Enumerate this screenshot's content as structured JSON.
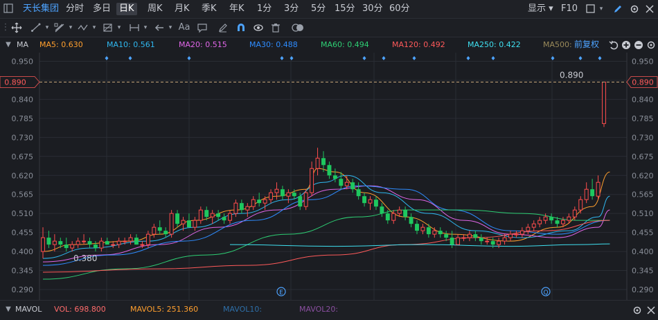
{
  "topbar": {
    "stock_name": "天长集团",
    "periods": [
      "分时",
      "多日",
      "日K",
      "周K",
      "月K",
      "季K",
      "年K",
      "1分",
      "3分",
      "5分",
      "15分",
      "30分",
      "60分"
    ],
    "active_period": "日K",
    "display_label": "显示",
    "f10_label": "F10"
  },
  "toolbar": {
    "text_tool_label": "Aa"
  },
  "ma_bar": {
    "label": "MA",
    "items": [
      {
        "text": "MA5: 0.630",
        "color": "#ff9f2e"
      },
      {
        "text": "MA10: 0.561",
        "color": "#2fb8f0"
      },
      {
        "text": "MA20: 0.515",
        "color": "#e066e8"
      },
      {
        "text": "MA30: 0.488",
        "color": "#2e8cff"
      },
      {
        "text": "MA60: 0.494",
        "color": "#2ecf74"
      },
      {
        "text": "MA120: 0.492",
        "color": "#ff5a5a"
      },
      {
        "text": "MA250: 0.422",
        "color": "#3fe0f0"
      },
      {
        "text": "MA500:",
        "color": "#9a8a5a"
      }
    ],
    "adjust_label": "前复权"
  },
  "vol_bar": {
    "label": "MAVOL",
    "items": [
      {
        "text": "VOL: 698.800",
        "color": "#ff6b6b"
      },
      {
        "text": "MAVOL5: 251.360",
        "color": "#ff9f2e"
      },
      {
        "text": "MAVOL10:",
        "color": "#2e6fa8"
      },
      {
        "text": "MAVOL20:",
        "color": "#8a4fa0"
      }
    ]
  },
  "chart_data": {
    "type": "candlestick",
    "ylim": [
      0.26,
      0.975
    ],
    "yticks": [
      "0.950",
      "0.895",
      "0.840",
      "0.785",
      "0.730",
      "0.675",
      "0.620",
      "0.565",
      "0.510",
      "0.455",
      "0.400",
      "0.345",
      "0.290"
    ],
    "current_price": "0.890",
    "current_value": 0.89,
    "high_label": "0.890",
    "low_label": "0.380",
    "low_value": 0.38,
    "event_markers": [
      "E",
      "Q"
    ],
    "grid": true,
    "colors": {
      "up": "#ff4d4d",
      "down": "#1ec85f",
      "grid": "#2a2d34",
      "axis": "#8a8f99",
      "price_line": "#c8a77a"
    },
    "candles": [
      {
        "o": 0.4,
        "h": 0.47,
        "l": 0.38,
        "c": 0.44
      },
      {
        "o": 0.44,
        "h": 0.46,
        "l": 0.41,
        "c": 0.42
      },
      {
        "o": 0.42,
        "h": 0.45,
        "l": 0.4,
        "c": 0.43
      },
      {
        "o": 0.43,
        "h": 0.44,
        "l": 0.41,
        "c": 0.42
      },
      {
        "o": 0.42,
        "h": 0.44,
        "l": 0.4,
        "c": 0.41
      },
      {
        "o": 0.41,
        "h": 0.43,
        "l": 0.4,
        "c": 0.42
      },
      {
        "o": 0.42,
        "h": 0.44,
        "l": 0.41,
        "c": 0.43
      },
      {
        "o": 0.43,
        "h": 0.45,
        "l": 0.42,
        "c": 0.43
      },
      {
        "o": 0.43,
        "h": 0.44,
        "l": 0.41,
        "c": 0.42
      },
      {
        "o": 0.42,
        "h": 0.43,
        "l": 0.4,
        "c": 0.41
      },
      {
        "o": 0.41,
        "h": 0.44,
        "l": 0.4,
        "c": 0.43
      },
      {
        "o": 0.43,
        "h": 0.44,
        "l": 0.42,
        "c": 0.42
      },
      {
        "o": 0.42,
        "h": 0.43,
        "l": 0.41,
        "c": 0.42
      },
      {
        "o": 0.42,
        "h": 0.44,
        "l": 0.41,
        "c": 0.43
      },
      {
        "o": 0.43,
        "h": 0.44,
        "l": 0.42,
        "c": 0.43
      },
      {
        "o": 0.43,
        "h": 0.45,
        "l": 0.42,
        "c": 0.44
      },
      {
        "o": 0.44,
        "h": 0.45,
        "l": 0.42,
        "c": 0.42
      },
      {
        "o": 0.42,
        "h": 0.43,
        "l": 0.41,
        "c": 0.42
      },
      {
        "o": 0.42,
        "h": 0.46,
        "l": 0.41,
        "c": 0.45
      },
      {
        "o": 0.45,
        "h": 0.48,
        "l": 0.44,
        "c": 0.47
      },
      {
        "o": 0.47,
        "h": 0.49,
        "l": 0.45,
        "c": 0.46
      },
      {
        "o": 0.46,
        "h": 0.47,
        "l": 0.44,
        "c": 0.45
      },
      {
        "o": 0.45,
        "h": 0.52,
        "l": 0.44,
        "c": 0.51
      },
      {
        "o": 0.51,
        "h": 0.52,
        "l": 0.47,
        "c": 0.48
      },
      {
        "o": 0.48,
        "h": 0.5,
        "l": 0.46,
        "c": 0.49
      },
      {
        "o": 0.49,
        "h": 0.51,
        "l": 0.47,
        "c": 0.47
      },
      {
        "o": 0.47,
        "h": 0.5,
        "l": 0.46,
        "c": 0.49
      },
      {
        "o": 0.49,
        "h": 0.53,
        "l": 0.48,
        "c": 0.52
      },
      {
        "o": 0.52,
        "h": 0.53,
        "l": 0.49,
        "c": 0.5
      },
      {
        "o": 0.5,
        "h": 0.52,
        "l": 0.48,
        "c": 0.51
      },
      {
        "o": 0.51,
        "h": 0.52,
        "l": 0.49,
        "c": 0.5
      },
      {
        "o": 0.5,
        "h": 0.51,
        "l": 0.48,
        "c": 0.49
      },
      {
        "o": 0.49,
        "h": 0.52,
        "l": 0.48,
        "c": 0.51
      },
      {
        "o": 0.51,
        "h": 0.55,
        "l": 0.5,
        "c": 0.54
      },
      {
        "o": 0.54,
        "h": 0.55,
        "l": 0.51,
        "c": 0.52
      },
      {
        "o": 0.52,
        "h": 0.54,
        "l": 0.5,
        "c": 0.53
      },
      {
        "o": 0.53,
        "h": 0.56,
        "l": 0.52,
        "c": 0.55
      },
      {
        "o": 0.55,
        "h": 0.57,
        "l": 0.53,
        "c": 0.54
      },
      {
        "o": 0.54,
        "h": 0.56,
        "l": 0.52,
        "c": 0.55
      },
      {
        "o": 0.55,
        "h": 0.58,
        "l": 0.54,
        "c": 0.57
      },
      {
        "o": 0.57,
        "h": 0.6,
        "l": 0.55,
        "c": 0.58
      },
      {
        "o": 0.58,
        "h": 0.59,
        "l": 0.55,
        "c": 0.56
      },
      {
        "o": 0.56,
        "h": 0.58,
        "l": 0.54,
        "c": 0.57
      },
      {
        "o": 0.57,
        "h": 0.58,
        "l": 0.55,
        "c": 0.56
      },
      {
        "o": 0.56,
        "h": 0.57,
        "l": 0.52,
        "c": 0.53
      },
      {
        "o": 0.53,
        "h": 0.58,
        "l": 0.52,
        "c": 0.57
      },
      {
        "o": 0.57,
        "h": 0.66,
        "l": 0.56,
        "c": 0.64
      },
      {
        "o": 0.64,
        "h": 0.7,
        "l": 0.62,
        "c": 0.67
      },
      {
        "o": 0.67,
        "h": 0.69,
        "l": 0.63,
        "c": 0.65
      },
      {
        "o": 0.65,
        "h": 0.66,
        "l": 0.61,
        "c": 0.62
      },
      {
        "o": 0.62,
        "h": 0.64,
        "l": 0.6,
        "c": 0.61
      },
      {
        "o": 0.61,
        "h": 0.63,
        "l": 0.58,
        "c": 0.59
      },
      {
        "o": 0.59,
        "h": 0.62,
        "l": 0.58,
        "c": 0.6
      },
      {
        "o": 0.6,
        "h": 0.61,
        "l": 0.57,
        "c": 0.58
      },
      {
        "o": 0.58,
        "h": 0.6,
        "l": 0.55,
        "c": 0.56
      },
      {
        "o": 0.56,
        "h": 0.57,
        "l": 0.53,
        "c": 0.54
      },
      {
        "o": 0.54,
        "h": 0.56,
        "l": 0.52,
        "c": 0.55
      },
      {
        "o": 0.55,
        "h": 0.56,
        "l": 0.52,
        "c": 0.53
      },
      {
        "o": 0.53,
        "h": 0.54,
        "l": 0.5,
        "c": 0.51
      },
      {
        "o": 0.51,
        "h": 0.52,
        "l": 0.48,
        "c": 0.49
      },
      {
        "o": 0.49,
        "h": 0.52,
        "l": 0.48,
        "c": 0.51
      },
      {
        "o": 0.51,
        "h": 0.53,
        "l": 0.5,
        "c": 0.52
      },
      {
        "o": 0.52,
        "h": 0.53,
        "l": 0.49,
        "c": 0.5
      },
      {
        "o": 0.5,
        "h": 0.51,
        "l": 0.47,
        "c": 0.48
      },
      {
        "o": 0.48,
        "h": 0.49,
        "l": 0.45,
        "c": 0.46
      },
      {
        "o": 0.46,
        "h": 0.48,
        "l": 0.45,
        "c": 0.47
      },
      {
        "o": 0.47,
        "h": 0.48,
        "l": 0.44,
        "c": 0.45
      },
      {
        "o": 0.45,
        "h": 0.47,
        "l": 0.44,
        "c": 0.46
      },
      {
        "o": 0.46,
        "h": 0.47,
        "l": 0.44,
        "c": 0.45
      },
      {
        "o": 0.45,
        "h": 0.46,
        "l": 0.43,
        "c": 0.44
      },
      {
        "o": 0.44,
        "h": 0.46,
        "l": 0.41,
        "c": 0.42
      },
      {
        "o": 0.42,
        "h": 0.45,
        "l": 0.42,
        "c": 0.44
      },
      {
        "o": 0.44,
        "h": 0.45,
        "l": 0.43,
        "c": 0.44
      },
      {
        "o": 0.44,
        "h": 0.46,
        "l": 0.43,
        "c": 0.45
      },
      {
        "o": 0.45,
        "h": 0.46,
        "l": 0.43,
        "c": 0.44
      },
      {
        "o": 0.44,
        "h": 0.45,
        "l": 0.42,
        "c": 0.43
      },
      {
        "o": 0.43,
        "h": 0.44,
        "l": 0.42,
        "c": 0.43
      },
      {
        "o": 0.43,
        "h": 0.44,
        "l": 0.41,
        "c": 0.42
      },
      {
        "o": 0.42,
        "h": 0.44,
        "l": 0.41,
        "c": 0.43
      },
      {
        "o": 0.43,
        "h": 0.45,
        "l": 0.42,
        "c": 0.44
      },
      {
        "o": 0.44,
        "h": 0.46,
        "l": 0.43,
        "c": 0.45
      },
      {
        "o": 0.45,
        "h": 0.46,
        "l": 0.44,
        "c": 0.45
      },
      {
        "o": 0.45,
        "h": 0.47,
        "l": 0.44,
        "c": 0.46
      },
      {
        "o": 0.46,
        "h": 0.48,
        "l": 0.45,
        "c": 0.47
      },
      {
        "o": 0.47,
        "h": 0.49,
        "l": 0.46,
        "c": 0.48
      },
      {
        "o": 0.48,
        "h": 0.5,
        "l": 0.47,
        "c": 0.49
      },
      {
        "o": 0.49,
        "h": 0.51,
        "l": 0.48,
        "c": 0.5
      },
      {
        "o": 0.5,
        "h": 0.51,
        "l": 0.48,
        "c": 0.49
      },
      {
        "o": 0.49,
        "h": 0.5,
        "l": 0.47,
        "c": 0.48
      },
      {
        "o": 0.48,
        "h": 0.5,
        "l": 0.47,
        "c": 0.49
      },
      {
        "o": 0.49,
        "h": 0.51,
        "l": 0.48,
        "c": 0.5
      },
      {
        "o": 0.5,
        "h": 0.53,
        "l": 0.49,
        "c": 0.52
      },
      {
        "o": 0.52,
        "h": 0.56,
        "l": 0.51,
        "c": 0.55
      },
      {
        "o": 0.55,
        "h": 0.6,
        "l": 0.54,
        "c": 0.58
      },
      {
        "o": 0.58,
        "h": 0.61,
        "l": 0.55,
        "c": 0.56
      },
      {
        "o": 0.56,
        "h": 0.62,
        "l": 0.55,
        "c": 0.6
      },
      {
        "o": 0.77,
        "h": 0.89,
        "l": 0.76,
        "c": 0.89
      }
    ],
    "ma_lines": [
      {
        "name": "MA5",
        "color": "#ff9f2e",
        "values": [
          [
            0,
            0.4
          ],
          [
            5,
            0.42
          ],
          [
            15,
            0.43
          ],
          [
            20,
            0.45
          ],
          [
            26,
            0.49
          ],
          [
            33,
            0.52
          ],
          [
            40,
            0.56
          ],
          [
            45,
            0.58
          ],
          [
            47,
            0.64
          ],
          [
            50,
            0.63
          ],
          [
            55,
            0.57
          ],
          [
            62,
            0.5
          ],
          [
            70,
            0.45
          ],
          [
            80,
            0.43
          ],
          [
            88,
            0.47
          ],
          [
            94,
            0.53
          ],
          [
            97,
            0.63
          ]
        ]
      },
      {
        "name": "MA10",
        "color": "#2fb8f0",
        "values": [
          [
            0,
            0.38
          ],
          [
            8,
            0.41
          ],
          [
            18,
            0.43
          ],
          [
            26,
            0.47
          ],
          [
            34,
            0.51
          ],
          [
            42,
            0.55
          ],
          [
            48,
            0.6
          ],
          [
            52,
            0.62
          ],
          [
            58,
            0.57
          ],
          [
            66,
            0.51
          ],
          [
            74,
            0.46
          ],
          [
            82,
            0.44
          ],
          [
            90,
            0.46
          ],
          [
            95,
            0.5
          ],
          [
            97,
            0.56
          ]
        ]
      },
      {
        "name": "MA20",
        "color": "#e066e8",
        "values": [
          [
            0,
            0.37
          ],
          [
            10,
            0.39
          ],
          [
            20,
            0.42
          ],
          [
            30,
            0.47
          ],
          [
            40,
            0.52
          ],
          [
            50,
            0.58
          ],
          [
            56,
            0.59
          ],
          [
            64,
            0.55
          ],
          [
            72,
            0.49
          ],
          [
            80,
            0.45
          ],
          [
            88,
            0.44
          ],
          [
            95,
            0.47
          ],
          [
            97,
            0.52
          ]
        ]
      },
      {
        "name": "MA30",
        "color": "#2e8cff",
        "values": [
          [
            0,
            0.36
          ],
          [
            12,
            0.39
          ],
          [
            24,
            0.43
          ],
          [
            36,
            0.49
          ],
          [
            46,
            0.55
          ],
          [
            54,
            0.59
          ],
          [
            62,
            0.58
          ],
          [
            70,
            0.52
          ],
          [
            80,
            0.46
          ],
          [
            88,
            0.45
          ],
          [
            97,
            0.49
          ]
        ]
      },
      {
        "name": "MA60",
        "color": "#2ecf74",
        "values": [
          [
            0,
            0.32
          ],
          [
            14,
            0.35
          ],
          [
            28,
            0.39
          ],
          [
            42,
            0.45
          ],
          [
            54,
            0.5
          ],
          [
            62,
            0.52
          ],
          [
            72,
            0.52
          ],
          [
            82,
            0.51
          ],
          [
            92,
            0.49
          ],
          [
            97,
            0.49
          ]
        ]
      },
      {
        "name": "MA120",
        "color": "#ff5a5a",
        "values": [
          [
            0,
            0.34
          ],
          [
            20,
            0.35
          ],
          [
            35,
            0.36
          ],
          [
            50,
            0.39
          ],
          [
            62,
            0.42
          ],
          [
            74,
            0.44
          ],
          [
            86,
            0.46
          ],
          [
            97,
            0.49
          ]
        ]
      },
      {
        "name": "MA250",
        "color": "#3fe0f0",
        "values": [
          [
            32,
            0.42
          ],
          [
            50,
            0.415
          ],
          [
            65,
            0.42
          ],
          [
            80,
            0.415
          ],
          [
            92,
            0.42
          ],
          [
            97,
            0.422
          ]
        ]
      }
    ]
  }
}
